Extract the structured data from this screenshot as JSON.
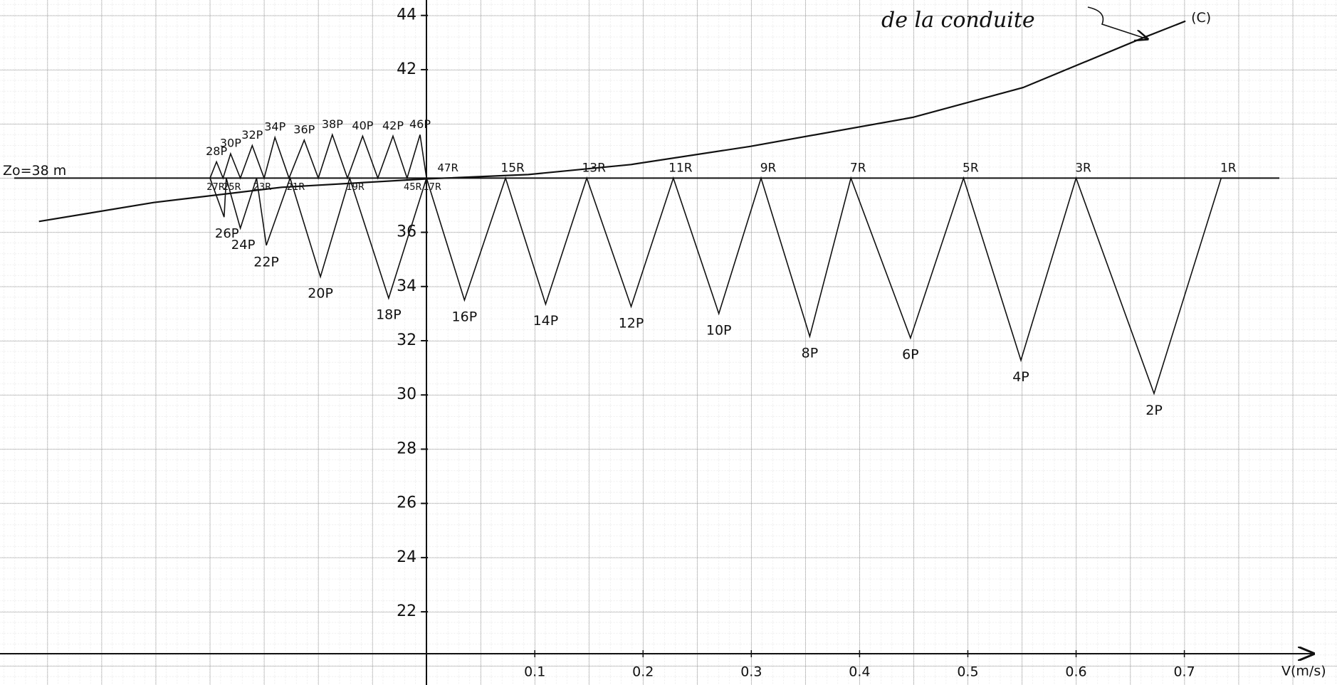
{
  "chart_data": {
    "type": "line",
    "x_label": "V(m/s)",
    "xlim": [
      -0.394,
      0.841
    ],
    "ylim": [
      19.3,
      44.57
    ],
    "xticks": [
      0.1,
      0.2,
      0.3,
      0.4,
      0.5,
      0.6,
      0.7
    ],
    "yticks": [
      22,
      24,
      26,
      28,
      30,
      32,
      34,
      36,
      42,
      44
    ],
    "grid": true,
    "color": "#111111",
    "reference_line": {
      "label": "Zo=38 m",
      "y": 38
    },
    "annotation": "de la conduite",
    "curve": {
      "label": "(C)",
      "x": [
        -0.358,
        -0.252,
        -0.134,
        0,
        0.094,
        0.189,
        0.299,
        0.449,
        0.551,
        0.661,
        0.701
      ],
      "y": [
        36.4,
        37.1,
        37.66,
        37.97,
        38.13,
        38.5,
        39.17,
        40.24,
        41.34,
        43.16,
        43.79
      ]
    },
    "zigzag": {
      "x": [
        0.734,
        0.672,
        0.6,
        0.549,
        0.496,
        0.447,
        0.392,
        0.354,
        0.309,
        0.27,
        0.228,
        0.189,
        0.148,
        0.11,
        0.073,
        0.035,
        0,
        -0.035,
        -0.071,
        -0.098,
        -0.126,
        -0.148,
        -0.157,
        -0.172,
        -0.185,
        -0.187,
        -0.2,
        -0.194,
        -0.188,
        -0.181,
        -0.172,
        -0.161,
        -0.15,
        -0.14,
        -0.127,
        -0.113,
        -0.1,
        -0.087,
        -0.073,
        -0.059,
        -0.045,
        -0.031,
        -0.018,
        -0.006,
        0
      ],
      "y": [
        38,
        30.05,
        38,
        31.28,
        38,
        32.1,
        38,
        32.16,
        38,
        33.0,
        38,
        33.26,
        38,
        33.35,
        38,
        33.5,
        38,
        33.57,
        38,
        34.36,
        38,
        35.52,
        38,
        36.15,
        38,
        36.56,
        38,
        38.6,
        38,
        38.9,
        38,
        39.2,
        38,
        39.5,
        38,
        39.4,
        38,
        39.6,
        38,
        39.55,
        38,
        39.55,
        38,
        39.6,
        38
      ],
      "labels": [
        "1R",
        "2P",
        "3R",
        "4P",
        "5R",
        "6P",
        "7R",
        "8P",
        "9R",
        "10P",
        "11R",
        "12P",
        "13R",
        "14P",
        "15R",
        "16P",
        "17R",
        "18P",
        "19R",
        "20P",
        "21R",
        "22P",
        "23R",
        "24P",
        "25R",
        "26P",
        "27R",
        "28P",
        null,
        "30P",
        null,
        "32P",
        null,
        "34P",
        null,
        "36P",
        null,
        "38P",
        null,
        "40P",
        null,
        "42P",
        "45R",
        "46P",
        "47R"
      ]
    }
  }
}
